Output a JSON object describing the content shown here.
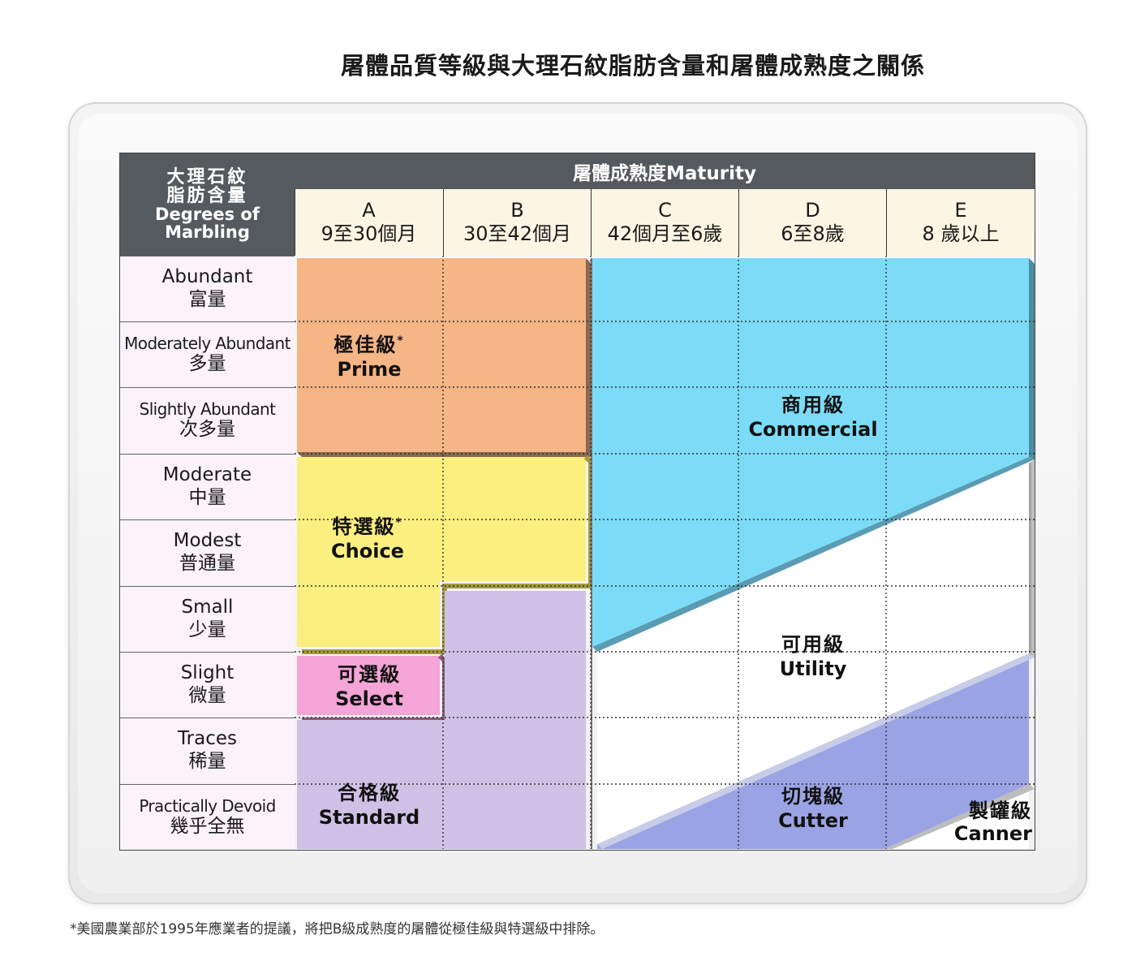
{
  "title": "屠體品質等級與大理石紋脂肪含量和屠體成熟度之關係",
  "corner_header": {
    "zh_line1": "大理石紋",
    "zh_line2": "脂肪含量",
    "en_line1": "Degrees of",
    "en_line2": "Marbling"
  },
  "maturity_header": "屠體成熟度Maturity",
  "columns": [
    {
      "letter": "A",
      "range": "9至30個月"
    },
    {
      "letter": "B",
      "range": "30至42個月"
    },
    {
      "letter": "C",
      "range": "42個月至6歲"
    },
    {
      "letter": "D",
      "range": "6至8歲"
    },
    {
      "letter": "E",
      "range": "8 歲以上"
    }
  ],
  "rows": [
    {
      "en": "Abundant",
      "zh": "富量"
    },
    {
      "en": "Moderately Abundant",
      "zh": "多量"
    },
    {
      "en": "Slightly Abundant",
      "zh": "次多量"
    },
    {
      "en": "Moderate",
      "zh": "中量"
    },
    {
      "en": "Modest",
      "zh": "普通量"
    },
    {
      "en": "Small",
      "zh": "少量"
    },
    {
      "en": "Slight",
      "zh": "微量"
    },
    {
      "en": "Traces",
      "zh": "稀量"
    },
    {
      "en": "Practically Devoid",
      "zh": "幾乎全無"
    }
  ],
  "grades": {
    "prime": {
      "zh": "極佳級",
      "mark": "*",
      "en": "Prime",
      "color": "#f5b585"
    },
    "choice": {
      "zh": "特選級",
      "mark": "*",
      "en": "Choice",
      "color": "#faef7f"
    },
    "select": {
      "zh": "可選級",
      "en": "Select",
      "color": "#f4a4d6"
    },
    "standard": {
      "zh": "合格級",
      "en": "Standard",
      "color": "#cfc1e6"
    },
    "commercial": {
      "zh": "商用級",
      "en": "Commercial",
      "color": "#7cdcf7"
    },
    "utility": {
      "zh": "可用級",
      "en": "Utility",
      "color": "#ffffff"
    },
    "cutter": {
      "zh": "切塊級",
      "en": "Cutter",
      "color": "#9aa3e3"
    },
    "canner": {
      "zh": "製罐級",
      "en": "Canner",
      "color": "#ffffff"
    }
  },
  "footnote": "*美國農業部於1995年應業者的提議，將把B級成熟度的屠體從極佳級與特選級中排除。"
}
